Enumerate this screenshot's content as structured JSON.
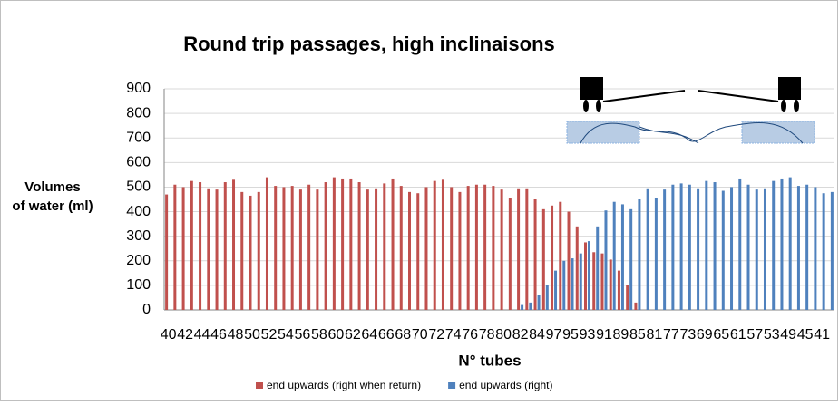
{
  "chart_data": {
    "type": "bar",
    "title": "Round trip passages, high inclinaisons",
    "x_label": "N° tubes",
    "y_label": [
      "Volumes",
      "of water (ml)"
    ],
    "categories": [
      "40",
      null,
      "42",
      null,
      "44",
      null,
      "46",
      null,
      "48",
      null,
      "50",
      null,
      "52",
      null,
      "54",
      null,
      "56",
      null,
      "58",
      null,
      "60",
      null,
      "62",
      null,
      "64",
      null,
      "66",
      null,
      "68",
      null,
      "70",
      null,
      "72",
      null,
      "74",
      null,
      "76",
      null,
      "78",
      null,
      "80",
      null,
      "82",
      null,
      "84",
      null,
      "97",
      null,
      "95",
      null,
      "93",
      null,
      "91",
      null,
      "89",
      null,
      "85",
      null,
      "81",
      null,
      "77",
      null,
      "73",
      null,
      "69",
      null,
      "65",
      null,
      "61",
      null,
      "57",
      null,
      "53",
      null,
      "49",
      null,
      "45",
      null,
      "41",
      null
    ],
    "series": [
      {
        "name": "end upwards (right when return)",
        "color": "#c0504d",
        "values": [
          470,
          510,
          500,
          525,
          520,
          495,
          490,
          520,
          530,
          480,
          465,
          480,
          540,
          505,
          500,
          505,
          490,
          510,
          490,
          520,
          540,
          535,
          535,
          520,
          490,
          495,
          515,
          535,
          505,
          480,
          475,
          500,
          525,
          530,
          500,
          480,
          505,
          510,
          510,
          505,
          490,
          455,
          495,
          495,
          450,
          410,
          425,
          440,
          400,
          340,
          275,
          235,
          230,
          205,
          160,
          100,
          30,
          null,
          null,
          null,
          null,
          null,
          null,
          null,
          null,
          null,
          null,
          null,
          null,
          null,
          null,
          null,
          null,
          null,
          null,
          null,
          null,
          null,
          null,
          null
        ]
      },
      {
        "name": "end upwards (right)",
        "color": "#4f81bd",
        "values": [
          null,
          null,
          null,
          null,
          null,
          null,
          null,
          null,
          null,
          null,
          null,
          null,
          null,
          null,
          null,
          null,
          null,
          null,
          null,
          null,
          null,
          null,
          null,
          null,
          null,
          null,
          null,
          null,
          null,
          null,
          null,
          null,
          null,
          null,
          null,
          null,
          null,
          null,
          null,
          null,
          null,
          null,
          20,
          30,
          60,
          100,
          160,
          200,
          210,
          230,
          280,
          340,
          405,
          440,
          430,
          410,
          450,
          495,
          455,
          490,
          510,
          515,
          510,
          495,
          525,
          520,
          485,
          500,
          535,
          510,
          490,
          495,
          525,
          535,
          540,
          505,
          510,
          500,
          475,
          480
        ]
      }
    ],
    "ylim": [
      0,
      900
    ],
    "yticks": [
      0,
      100,
      200,
      300,
      400,
      500,
      600,
      700,
      800,
      900
    ],
    "grid": true
  }
}
